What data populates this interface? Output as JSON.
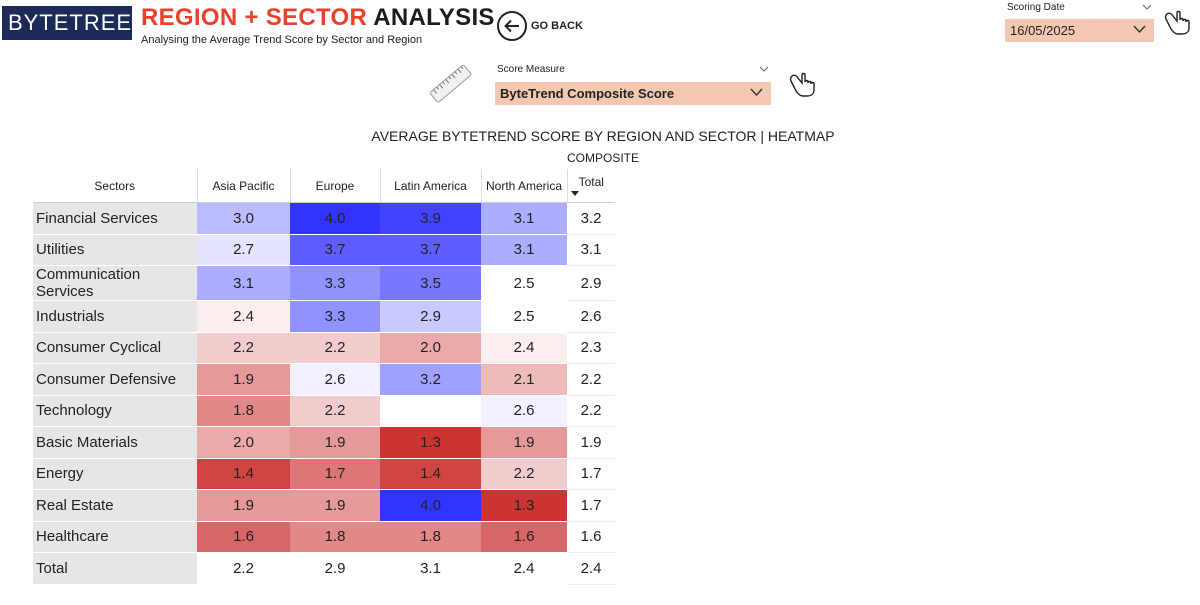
{
  "header": {
    "logo_text": "BYTETREE",
    "title_accent": "REGION + SECTOR",
    "title_rest": "ANALYSIS",
    "subtitle": "Analysing the Average Trend Score by Sector and Region",
    "go_back_label": "GO BACK"
  },
  "scoring_date": {
    "label": "Scoring Date",
    "value": "16/05/2025"
  },
  "score_measure": {
    "label": "Score Measure",
    "value": "ByteTrend Composite Score"
  },
  "chart": {
    "title": "AVERAGE BYTETREND SCORE BY REGION AND SECTOR | HEATMAP",
    "subtitle": "COMPOSITE"
  },
  "colors": {
    "accent": "#e8412c",
    "logo_bg": "#1b2a57",
    "slicer_bg": "#f4c7b0",
    "sector_bg": "#e6e6e6"
  },
  "chart_data": {
    "type": "heatmap",
    "row_header": "Sectors",
    "columns": [
      "Asia Pacific",
      "Europe",
      "Latin America",
      "North America"
    ],
    "total_label": "Total",
    "sort_column": "Total",
    "rows": [
      {
        "sector": "Financial Services",
        "values": [
          3.0,
          4.0,
          3.9,
          3.1
        ],
        "total": 3.2
      },
      {
        "sector": "Utilities",
        "values": [
          2.7,
          3.7,
          3.7,
          3.1
        ],
        "total": 3.1
      },
      {
        "sector": "Communication Services",
        "values": [
          3.1,
          3.3,
          3.5,
          2.5
        ],
        "total": 2.9
      },
      {
        "sector": "Industrials",
        "values": [
          2.4,
          3.3,
          2.9,
          2.5
        ],
        "total": 2.6
      },
      {
        "sector": "Consumer Cyclical",
        "values": [
          2.2,
          2.2,
          2.0,
          2.4
        ],
        "total": 2.3
      },
      {
        "sector": "Consumer Defensive",
        "values": [
          1.9,
          2.6,
          3.2,
          2.1
        ],
        "total": 2.2
      },
      {
        "sector": "Technology",
        "values": [
          1.8,
          2.2,
          null,
          2.6
        ],
        "total": 2.2
      },
      {
        "sector": "Basic Materials",
        "values": [
          2.0,
          1.9,
          1.3,
          1.9
        ],
        "total": 1.9
      },
      {
        "sector": "Energy",
        "values": [
          1.4,
          1.7,
          1.4,
          2.2
        ],
        "total": 1.7
      },
      {
        "sector": "Real Estate",
        "values": [
          1.9,
          1.9,
          4.0,
          1.3
        ],
        "total": 1.7
      },
      {
        "sector": "Healthcare",
        "values": [
          1.6,
          1.8,
          1.8,
          1.6
        ],
        "total": 1.6
      }
    ],
    "column_totals": [
      2.2,
      2.9,
      3.1,
      2.4
    ],
    "grand_total": 2.4,
    "color_scale": {
      "low_value": 1.3,
      "low_color": "#cc3333",
      "mid_value": 2.5,
      "mid_color": "#ffffff",
      "high_value": 4.0,
      "high_color": "#3333ff"
    }
  }
}
